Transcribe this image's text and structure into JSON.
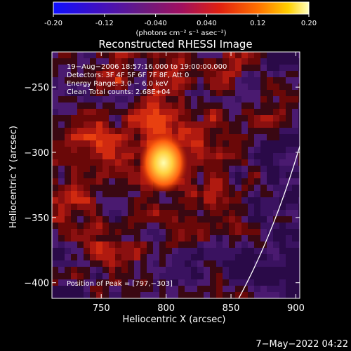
{
  "chart_data": {
    "type": "heatmap",
    "title": "Reconstructed RHESSI Image",
    "xlabel": "Heliocentric X (arcsec)",
    "ylabel": "Heliocentric Y (arcsec)",
    "colorbar": {
      "ticks": [
        "-0.20",
        "-0.12",
        "-0.040",
        "0.040",
        "0.12",
        "0.20"
      ],
      "range": [
        -0.2,
        0.2
      ],
      "units_label": "(photons cm⁻² s⁻¹ asec⁻²)"
    },
    "x_ticks": [
      {
        "value": 750,
        "label": "750"
      },
      {
        "value": 800,
        "label": "800"
      },
      {
        "value": 850,
        "label": "850"
      },
      {
        "value": 900,
        "label": "900"
      }
    ],
    "y_ticks": [
      {
        "value": -250,
        "label": "−250"
      },
      {
        "value": -300,
        "label": "−300"
      },
      {
        "value": -350,
        "label": "−350"
      },
      {
        "value": -400,
        "label": "−400"
      }
    ],
    "annotation_lines": [
      "19−Aug−2006 18:57:16.000 to 19:00:00.000",
      "Detectors: 3F 4F 5F 6F 7F 8F, Att 0",
      "Energy Range: 3.0 − 6.0 keV",
      "Clean    Total counts: 2.68E+04"
    ],
    "peak_text": "Position of Peak = [797,−303]",
    "peak": {
      "x": 797,
      "y": -303
    },
    "xlim": [
      712,
      903
    ],
    "ylim": [
      -412,
      -223
    ],
    "limb": "white arc at lower right",
    "footer": "7−May−2022 04:22"
  }
}
